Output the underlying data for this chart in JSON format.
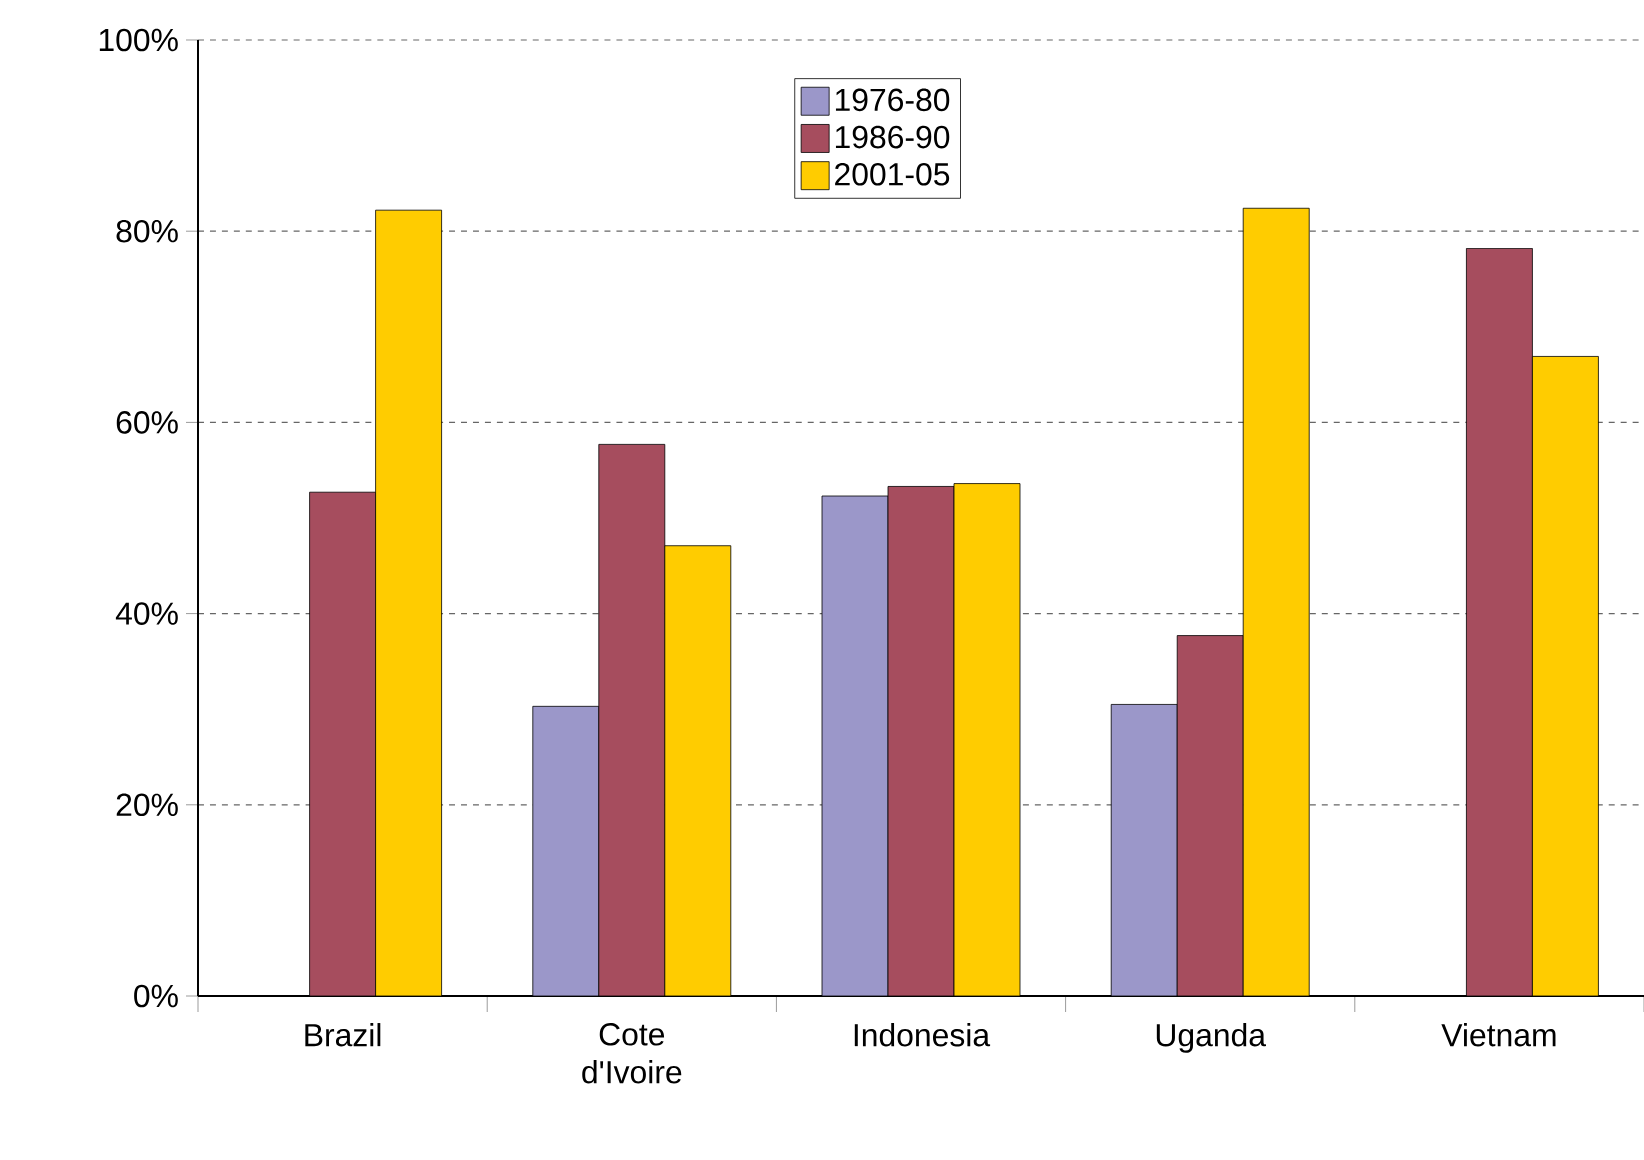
{
  "chart_data": {
    "type": "bar",
    "categories": [
      "Brazil",
      "Cote d'Ivoire",
      "Indonesia",
      "Uganda",
      "Vietnam"
    ],
    "series": [
      {
        "name": "1976-80",
        "color": "#9b97c9",
        "values": [
          null,
          30.3,
          52.3,
          30.5,
          null
        ]
      },
      {
        "name": "1986-90",
        "color": "#a64d5e",
        "values": [
          52.7,
          57.7,
          53.3,
          37.7,
          78.2
        ]
      },
      {
        "name": "2001-05",
        "color": "#ffcc00",
        "values": [
          82.2,
          47.1,
          53.6,
          82.4,
          66.9
        ]
      }
    ],
    "ylim": [
      0,
      100
    ],
    "yticks": [
      {
        "value": 0,
        "label": "0%"
      },
      {
        "value": 20,
        "label": "20%"
      },
      {
        "value": 40,
        "label": "40%"
      },
      {
        "value": 60,
        "label": "60%"
      },
      {
        "value": 80,
        "label": "80%"
      },
      {
        "value": 100,
        "label": "100%"
      }
    ],
    "grid": "y",
    "legend": "top"
  }
}
